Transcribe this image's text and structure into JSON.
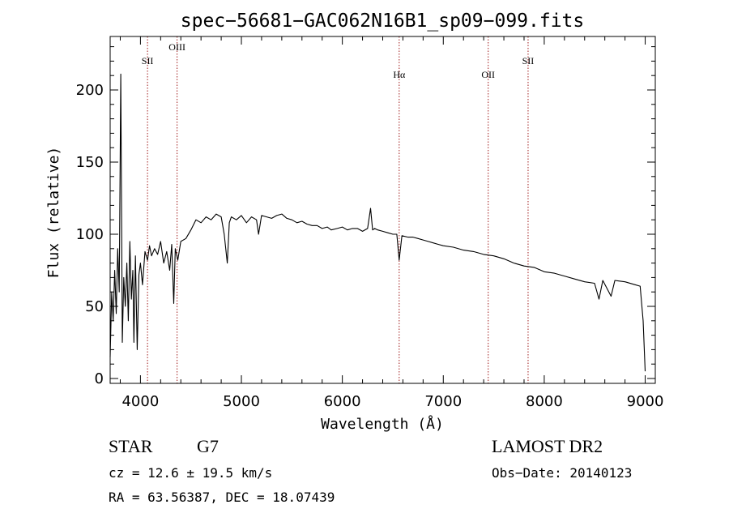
{
  "chart_data": {
    "type": "line",
    "title": "spec−56681−GAC062N16B1_sp09−099.fits",
    "xlabel": "Wavelength (Å)",
    "ylabel": "Flux (relative)",
    "xlim": [
      3700,
      9100
    ],
    "ylim": [
      0,
      240
    ],
    "xticks": [
      4000,
      5000,
      6000,
      7000,
      8000,
      9000
    ],
    "yticks": [
      0,
      50,
      100,
      150,
      200
    ],
    "grid": false,
    "line_color": "#000000",
    "marker_color": "#a01a1a",
    "lines": [
      {
        "label": "SII",
        "wavelength": 4070
      },
      {
        "label": "OIII",
        "wavelength": 4363
      },
      {
        "label": "Hα",
        "wavelength": 6563
      },
      {
        "label": "OII",
        "wavelength": 7445
      },
      {
        "label": "SII",
        "wavelength": 7840
      }
    ],
    "series": [
      {
        "x": [
          3700,
          3715,
          3730,
          3745,
          3760,
          3775,
          3790,
          3805,
          3820,
          3835,
          3850,
          3865,
          3880,
          3895,
          3910,
          3925,
          3935,
          3950,
          3968,
          3985,
          4000,
          4020,
          4045,
          4070,
          4090,
          4110,
          4140,
          4170,
          4200,
          4230,
          4260,
          4290,
          4310,
          4330,
          4345,
          4370,
          4400,
          4450,
          4500,
          4550,
          4600,
          4650,
          4700,
          4750,
          4800,
          4830,
          4860,
          4880,
          4900,
          4950,
          5000,
          5050,
          5100,
          5150,
          5170,
          5200,
          5250,
          5300,
          5350,
          5400,
          5450,
          5500,
          5550,
          5600,
          5650,
          5700,
          5750,
          5800,
          5850,
          5890,
          5950,
          6000,
          6050,
          6100,
          6150,
          6200,
          6250,
          6280,
          6300,
          6320,
          6350,
          6400,
          6450,
          6500,
          6540,
          6563,
          6590,
          6650,
          6700,
          6750,
          6800,
          6850,
          6900,
          6950,
          7000,
          7100,
          7200,
          7300,
          7400,
          7500,
          7600,
          7700,
          7800,
          7900,
          8000,
          8100,
          8200,
          8300,
          8400,
          8498,
          8542,
          8580,
          8662,
          8700,
          8800,
          8900,
          8950,
          8980,
          9000
        ],
        "values": [
          15,
          60,
          40,
          75,
          45,
          90,
          60,
          211,
          25,
          70,
          50,
          80,
          40,
          95,
          55,
          75,
          25,
          85,
          20,
          72,
          80,
          65,
          88,
          82,
          92,
          85,
          90,
          86,
          95,
          80,
          88,
          75,
          93,
          52,
          90,
          82,
          95,
          97,
          103,
          110,
          108,
          112,
          110,
          114,
          112,
          100,
          80,
          108,
          112,
          110,
          113,
          108,
          112,
          110,
          100,
          113,
          112,
          111,
          113,
          114,
          111,
          110,
          108,
          109,
          107,
          106,
          106,
          104,
          105,
          103,
          104,
          105,
          103,
          104,
          104,
          102,
          104,
          118,
          103,
          104,
          103,
          102,
          101,
          100,
          100,
          82,
          99,
          98,
          98,
          97,
          96,
          95,
          94,
          93,
          92,
          91,
          89,
          88,
          86,
          85,
          83,
          80,
          78,
          77,
          74,
          73,
          71,
          69,
          67,
          66,
          55,
          68,
          57,
          68,
          67,
          65,
          64,
          40,
          5
        ]
      }
    ]
  },
  "info": {
    "class": "STAR",
    "subclass": "G7",
    "survey": "LAMOST DR2",
    "redshift": "cz = 12.6 ± 19.5 km/s",
    "obs_date": "Obs−Date: 20140123",
    "coords": "RA =  63.56387, DEC =  18.07439"
  }
}
